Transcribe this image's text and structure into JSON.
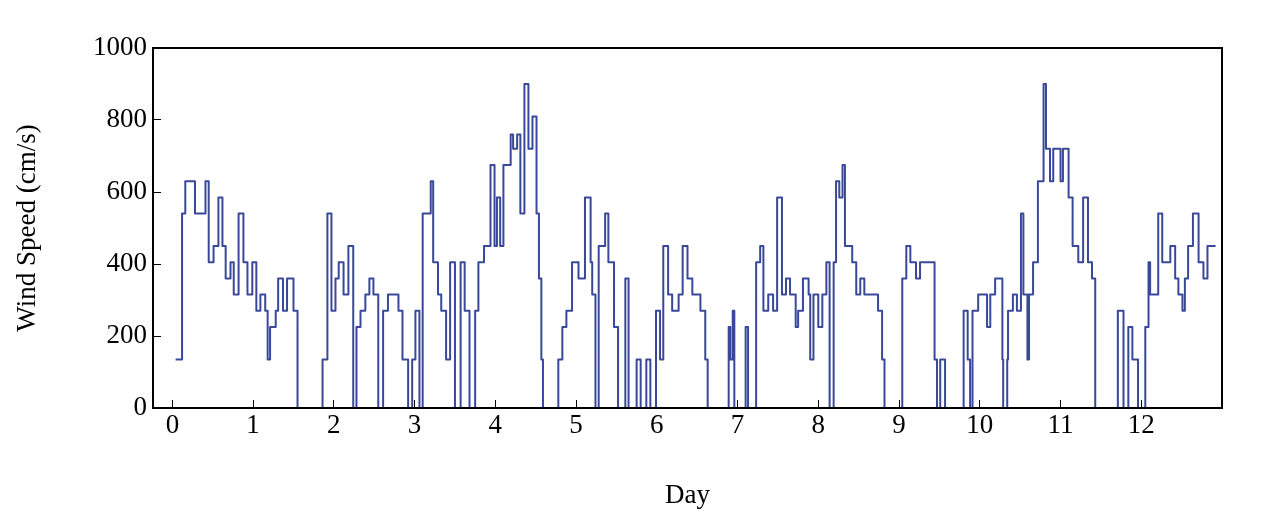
{
  "chart_data": {
    "type": "step",
    "xlabel": "Day",
    "ylabel": "Wind Speed (cm/s)",
    "color": "#3a4899",
    "xlim": [
      -0.24,
      13.0
    ],
    "xticks": [
      0,
      1,
      2,
      3,
      4,
      5,
      6,
      7,
      8,
      9,
      10,
      11,
      12
    ],
    "ylim": [
      0,
      1000
    ],
    "yticks": [
      0,
      200,
      400,
      600,
      800,
      1000
    ],
    "x": [
      0.04,
      0.12,
      0.16,
      0.28,
      0.41,
      0.45,
      0.51,
      0.57,
      0.62,
      0.66,
      0.72,
      0.76,
      0.82,
      0.88,
      0.93,
      0.99,
      1.04,
      1.09,
      1.15,
      1.18,
      1.21,
      1.28,
      1.31,
      1.37,
      1.42,
      1.5,
      1.55,
      1.86,
      1.92,
      1.97,
      2.02,
      2.06,
      2.12,
      2.18,
      2.24,
      2.28,
      2.33,
      2.39,
      2.44,
      2.49,
      2.55,
      2.61,
      2.67,
      2.8,
      2.85,
      2.92,
      2.97,
      3.01,
      3.06,
      3.1,
      3.2,
      3.23,
      3.29,
      3.33,
      3.39,
      3.44,
      3.5,
      3.57,
      3.62,
      3.68,
      3.75,
      3.79,
      3.86,
      3.94,
      3.99,
      4.02,
      4.06,
      4.1,
      4.19,
      4.22,
      4.27,
      4.31,
      4.36,
      4.41,
      4.46,
      4.51,
      4.54,
      4.57,
      4.59,
      4.78,
      4.83,
      4.88,
      4.95,
      5.03,
      5.11,
      5.18,
      5.2,
      5.24,
      5.28,
      5.36,
      5.4,
      5.47,
      5.52,
      5.61,
      5.65,
      5.75,
      5.8,
      5.87,
      5.92,
      5.99,
      6.04,
      6.08,
      6.14,
      6.19,
      6.27,
      6.32,
      6.38,
      6.44,
      6.54,
      6.6,
      6.63,
      6.89,
      6.91,
      6.94,
      6.96,
      7.1,
      7.13,
      7.23,
      7.28,
      7.32,
      7.38,
      7.44,
      7.49,
      7.55,
      7.6,
      7.65,
      7.72,
      7.75,
      7.81,
      7.88,
      7.9,
      7.94,
      8.0,
      8.05,
      8.1,
      8.14,
      8.19,
      8.22,
      8.26,
      8.3,
      8.33,
      8.42,
      8.47,
      8.52,
      8.57,
      8.74,
      8.79,
      8.82,
      9.04,
      9.09,
      9.14,
      9.21,
      9.26,
      9.44,
      9.47,
      9.51,
      9.57,
      9.8,
      9.85,
      9.88,
      9.91,
      9.98,
      10.09,
      10.13,
      10.19,
      10.28,
      10.29,
      10.34,
      10.35,
      10.41,
      10.46,
      10.51,
      10.54,
      10.59,
      10.61,
      10.66,
      10.72,
      10.79,
      10.82,
      10.87,
      10.91,
      11.0,
      11.03,
      11.1,
      11.15,
      11.22,
      11.28,
      11.34,
      11.39,
      11.43,
      11.71,
      11.78,
      11.84,
      11.89,
      11.96,
      12.05,
      12.09,
      12.11,
      12.21,
      12.26,
      12.36,
      12.42,
      12.46,
      12.51,
      12.54,
      12.58,
      12.64,
      12.71,
      12.77,
      12.82,
      12.92
    ],
    "values": [
      135,
      540,
      630,
      540,
      630,
      405,
      450,
      585,
      450,
      360,
      405,
      315,
      540,
      405,
      315,
      405,
      270,
      315,
      270,
      135,
      225,
      270,
      360,
      270,
      360,
      270,
      0,
      135,
      540,
      270,
      360,
      405,
      315,
      450,
      0,
      225,
      270,
      315,
      360,
      315,
      0,
      270,
      315,
      270,
      135,
      0,
      135,
      270,
      0,
      540,
      630,
      405,
      315,
      270,
      135,
      405,
      0,
      405,
      270,
      0,
      270,
      405,
      450,
      675,
      450,
      585,
      450,
      675,
      760,
      720,
      760,
      540,
      900,
      720,
      810,
      540,
      360,
      135,
      0,
      135,
      225,
      270,
      405,
      360,
      585,
      405,
      315,
      0,
      450,
      540,
      405,
      225,
      0,
      360,
      0,
      135,
      0,
      135,
      0,
      270,
      135,
      450,
      315,
      270,
      315,
      450,
      360,
      315,
      270,
      135,
      0,
      225,
      135,
      270,
      0,
      225,
      0,
      405,
      450,
      270,
      315,
      270,
      585,
      315,
      360,
      315,
      225,
      270,
      360,
      315,
      135,
      315,
      225,
      315,
      405,
      0,
      405,
      630,
      585,
      675,
      450,
      405,
      315,
      360,
      315,
      270,
      135,
      0,
      360,
      450,
      405,
      360,
      405,
      135,
      0,
      135,
      0,
      270,
      135,
      0,
      270,
      315,
      225,
      315,
      360,
      135,
      0,
      135,
      270,
      315,
      270,
      540,
      315,
      135,
      315,
      405,
      630,
      900,
      720,
      630,
      720,
      630,
      720,
      585,
      450,
      405,
      585,
      405,
      360,
      0,
      270,
      0,
      225,
      135,
      0,
      225,
      405,
      315,
      540,
      405,
      450,
      360,
      315,
      270,
      360,
      450,
      540,
      405,
      360,
      450,
      450
    ]
  }
}
